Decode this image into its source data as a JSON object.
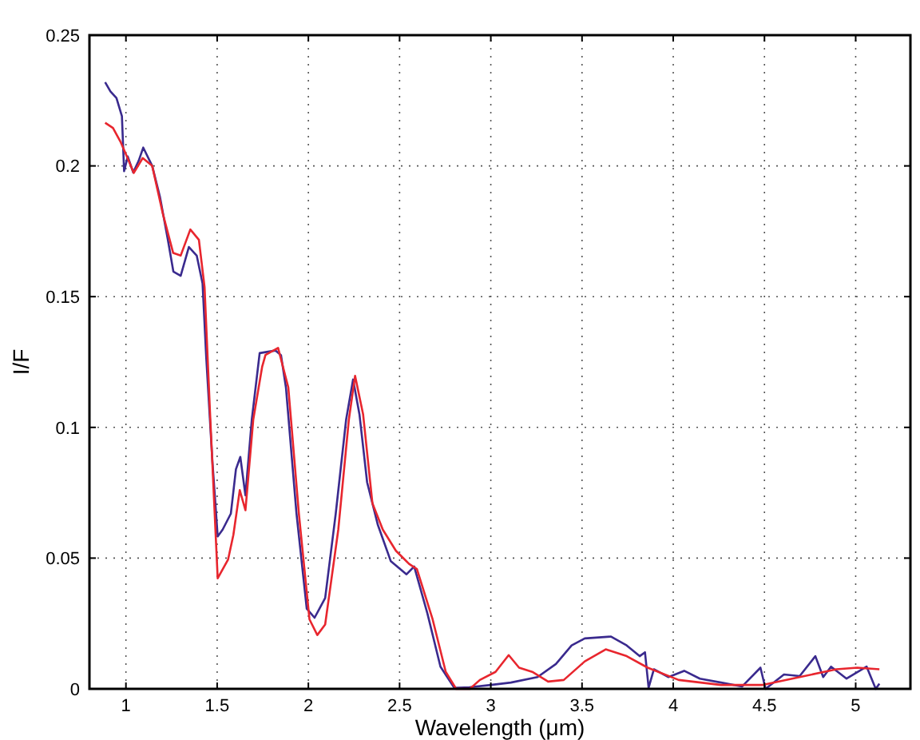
{
  "chart_data": {
    "type": "line",
    "xlabel": "Wavelength (μm)",
    "ylabel": "I/F",
    "xlim": [
      0.8,
      5.3
    ],
    "ylim": [
      0,
      0.25
    ],
    "xticks": [
      1,
      1.5,
      2,
      2.5,
      3,
      3.5,
      4,
      4.5,
      5
    ],
    "yticks": [
      0,
      0.05,
      0.1,
      0.15,
      0.2,
      0.25
    ],
    "grid": true,
    "line_style": "solid",
    "marker": "none",
    "series": [
      {
        "color": "#3a2a8e",
        "x": [
          0.886,
          0.915,
          0.948,
          0.978,
          0.99,
          1.01,
          1.04,
          1.07,
          1.095,
          1.144,
          1.187,
          1.23,
          1.26,
          1.3,
          1.345,
          1.388,
          1.42,
          1.44,
          1.474,
          1.503,
          1.53,
          1.575,
          1.603,
          1.627,
          1.655,
          1.69,
          1.733,
          1.819,
          1.85,
          1.877,
          1.935,
          1.991,
          2.034,
          2.092,
          2.15,
          2.207,
          2.245,
          2.28,
          2.322,
          2.38,
          2.452,
          2.538,
          2.58,
          2.653,
          2.724,
          2.8,
          2.883,
          3.0,
          3.11,
          3.256,
          3.357,
          3.443,
          3.515,
          3.659,
          3.745,
          3.816,
          3.845,
          3.865,
          3.894,
          3.974,
          4.06,
          4.146,
          4.262,
          4.377,
          4.478,
          4.506,
          4.607,
          4.693,
          4.779,
          4.822,
          4.865,
          4.95,
          5.06,
          5.11,
          5.13
        ],
        "values": [
          0.232,
          0.2285,
          0.226,
          0.219,
          0.198,
          0.2036,
          0.1975,
          0.202,
          0.207,
          0.2,
          0.188,
          0.1717,
          0.1596,
          0.158,
          0.169,
          0.1657,
          0.155,
          0.127,
          0.087,
          0.0583,
          0.0609,
          0.067,
          0.084,
          0.0887,
          0.074,
          0.103,
          0.1284,
          0.1294,
          0.1276,
          0.1153,
          0.067,
          0.0307,
          0.0272,
          0.0347,
          0.067,
          0.103,
          0.1183,
          0.105,
          0.079,
          0.0629,
          0.0488,
          0.0438,
          0.0468,
          0.0287,
          0.0085,
          0.0004,
          0.0006,
          0.0015,
          0.0024,
          0.0045,
          0.0095,
          0.0166,
          0.0193,
          0.02,
          0.0166,
          0.0125,
          0.014,
          0.0004,
          0.0075,
          0.0045,
          0.0069,
          0.0039,
          0.0024,
          0.0009,
          0.0081,
          0,
          0.0055,
          0.0049,
          0.0125,
          0.0045,
          0.0085,
          0.0039,
          0.0085,
          0,
          0.002
        ]
      },
      {
        "color": "#e8262e",
        "x": [
          0.886,
          0.929,
          0.972,
          1.015,
          1.043,
          1.092,
          1.144,
          1.202,
          1.259,
          1.3,
          1.353,
          1.4,
          1.431,
          1.46,
          1.503,
          1.56,
          1.589,
          1.624,
          1.655,
          1.698,
          1.747,
          1.765,
          1.834,
          1.89,
          1.948,
          2.006,
          2.049,
          2.092,
          2.164,
          2.222,
          2.256,
          2.3,
          2.351,
          2.408,
          2.48,
          2.552,
          2.595,
          2.681,
          2.753,
          2.81,
          2.885,
          2.94,
          3.026,
          3.098,
          3.155,
          3.227,
          3.314,
          3.4,
          3.515,
          3.63,
          3.745,
          3.86,
          4.03,
          4.262,
          4.492,
          4.693,
          4.894,
          5.009,
          5.13
        ],
        "values": [
          0.2165,
          0.2145,
          0.209,
          0.202,
          0.1973,
          0.203,
          0.2,
          0.1818,
          0.1667,
          0.1657,
          0.1757,
          0.1717,
          0.1536,
          0.107,
          0.0423,
          0.0495,
          0.0589,
          0.076,
          0.0683,
          0.103,
          0.1233,
          0.1277,
          0.1304,
          0.1153,
          0.067,
          0.0266,
          0.0206,
          0.0246,
          0.0609,
          0.103,
          0.1197,
          0.105,
          0.071,
          0.0609,
          0.0528,
          0.0478,
          0.0458,
          0.0266,
          0.0065,
          0,
          0,
          0.0034,
          0.0065,
          0.0129,
          0.0081,
          0.0065,
          0.0028,
          0.0034,
          0.0105,
          0.0151,
          0.0125,
          0.0081,
          0.0034,
          0.0015,
          0.0015,
          0.0045,
          0.0075,
          0.0081,
          0.0075
        ]
      }
    ]
  }
}
